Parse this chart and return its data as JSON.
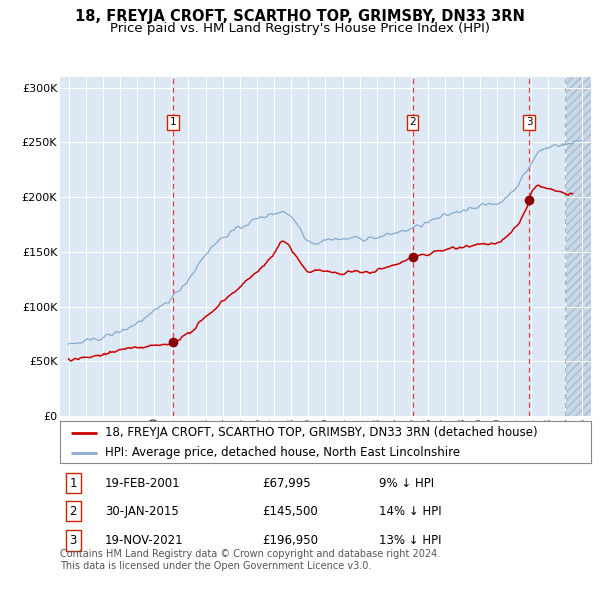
{
  "title": "18, FREYJA CROFT, SCARTHO TOP, GRIMSBY, DN33 3RN",
  "subtitle": "Price paid vs. HM Land Registry's House Price Index (HPI)",
  "ylim": [
    0,
    310000
  ],
  "yticks": [
    0,
    50000,
    100000,
    150000,
    200000,
    250000,
    300000
  ],
  "ytick_labels": [
    "£0",
    "£50K",
    "£100K",
    "£150K",
    "£200K",
    "£250K",
    "£300K"
  ],
  "xlim_start": 1994.5,
  "xlim_end": 2025.5,
  "bg_color": "#dce9f5",
  "hatch_color": "#c0d4e8",
  "grid_color": "#ffffff",
  "red_line_color": "#cc0000",
  "blue_line_color": "#88aacc",
  "sale_marker_color": "#880000",
  "sale1_x": 2001.12,
  "sale1_y": 67995,
  "sale1_label": "19-FEB-2001",
  "sale1_price": "£67,995",
  "sale1_hpi": "9% ↓ HPI",
  "sale2_x": 2015.08,
  "sale2_y": 145500,
  "sale2_label": "30-JAN-2015",
  "sale2_price": "£145,500",
  "sale2_hpi": "14% ↓ HPI",
  "sale3_x": 2021.89,
  "sale3_y": 196950,
  "sale3_label": "19-NOV-2021",
  "sale3_price": "£196,950",
  "sale3_hpi": "13% ↓ HPI",
  "legend_line1": "18, FREYJA CROFT, SCARTHO TOP, GRIMSBY, DN33 3RN (detached house)",
  "legend_line2": "HPI: Average price, detached house, North East Lincolnshire",
  "footer1": "Contains HM Land Registry data © Crown copyright and database right 2024.",
  "footer2": "This data is licensed under the Open Government Licence v3.0.",
  "title_fontsize": 10.5,
  "subtitle_fontsize": 9.5,
  "tick_fontsize": 8,
  "legend_fontsize": 8.5,
  "footer_fontsize": 7,
  "table_fontsize": 8.5,
  "hpi_anchors_x": [
    1995.0,
    1996.0,
    1997.0,
    1998.0,
    1999.0,
    2000.0,
    2001.0,
    2002.0,
    2003.0,
    2004.0,
    2005.0,
    2006.0,
    2007.0,
    2007.5,
    2008.0,
    2008.5,
    2009.0,
    2009.5,
    2010.0,
    2010.5,
    2011.0,
    2011.5,
    2012.0,
    2013.0,
    2014.0,
    2015.0,
    2016.0,
    2017.0,
    2018.0,
    2019.0,
    2020.0,
    2021.0,
    2022.0,
    2022.5,
    2023.0,
    2023.5,
    2024.0,
    2024.5,
    2025.0
  ],
  "hpi_anchors_y": [
    65000,
    68000,
    72000,
    77000,
    85000,
    95000,
    108000,
    125000,
    148000,
    163000,
    172000,
    180000,
    185000,
    187000,
    182000,
    172000,
    160000,
    158000,
    161000,
    162000,
    161000,
    163000,
    162000,
    163000,
    167000,
    171000,
    177000,
    183000,
    188000,
    192000,
    194000,
    207000,
    230000,
    242000,
    245000,
    248000,
    248000,
    250000,
    252000
  ],
  "prop_anchors_x": [
    1995.0,
    1996.0,
    1997.0,
    1998.0,
    1999.0,
    2000.0,
    2001.0,
    2001.12,
    2002.0,
    2003.0,
    2004.0,
    2005.0,
    2006.0,
    2007.0,
    2007.5,
    2008.0,
    2008.5,
    2009.0,
    2009.5,
    2010.0,
    2010.5,
    2011.0,
    2011.5,
    2012.0,
    2013.0,
    2014.0,
    2015.0,
    2015.08,
    2016.0,
    2017.0,
    2018.0,
    2019.0,
    2020.0,
    2021.0,
    2021.89,
    2022.0,
    2022.5,
    2023.0,
    2023.5,
    2024.0,
    2024.5
  ],
  "prop_anchors_y": [
    51000,
    53000,
    56000,
    60000,
    62000,
    64000,
    66000,
    67995,
    75000,
    90000,
    105000,
    118000,
    132000,
    148000,
    160000,
    152000,
    140000,
    132000,
    134000,
    132000,
    131000,
    130000,
    132000,
    131000,
    133000,
    138000,
    144000,
    145500,
    148000,
    152000,
    155000,
    157000,
    158000,
    170000,
    196950,
    205000,
    210000,
    207000,
    205000,
    203000,
    205000
  ]
}
